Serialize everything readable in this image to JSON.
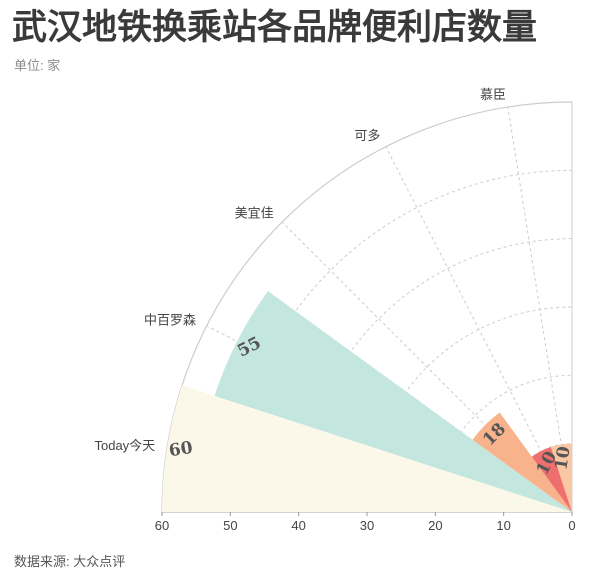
{
  "chart_data": {
    "type": "bar",
    "subtype": "polar-bar-quarter",
    "title": "武汉地铁换乘站各品牌便利店数量",
    "unit_label": "单位: 家",
    "source": "数据来源: 大众点评",
    "categories": [
      "Today今天",
      "中百罗森",
      "美宜佳",
      "可多",
      "慕臣"
    ],
    "series": [
      {
        "values": [
          60,
          55,
          18,
          10,
          10
        ],
        "colors": [
          "#fbf8e9",
          "#c3e6df",
          "#f8b38c",
          "#ef6f6f",
          "#f9c8a2"
        ]
      }
    ],
    "value_labels": [
      "60",
      "55",
      "18",
      "10",
      "10"
    ],
    "radial_ticks": [
      "60",
      "50",
      "40",
      "30",
      "20",
      "10",
      "0"
    ],
    "rlim": [
      0,
      60
    ],
    "grid": true,
    "colors": {
      "grid": "#cccccc",
      "text": "#444444",
      "title": "#3a3a3a"
    }
  }
}
